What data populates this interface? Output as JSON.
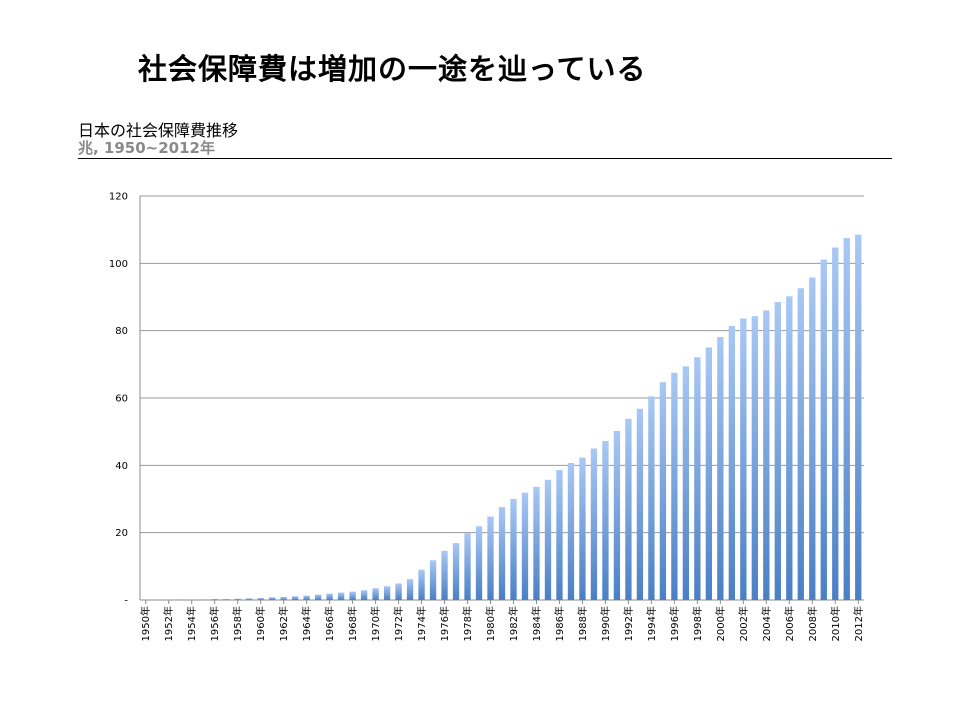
{
  "slide": {
    "title": "社会保障費は増加の一途を辿っている",
    "chart_heading": "日本の社会保障費推移",
    "chart_subheading": "兆, 1950~2012年"
  },
  "chart_data": {
    "type": "bar",
    "title": "日本の社会保障費推移",
    "subtitle": "兆, 1950~2012年",
    "xlabel": "",
    "ylabel": "",
    "ylim": [
      0,
      120
    ],
    "yticks": [
      0,
      20,
      40,
      60,
      80,
      100,
      120
    ],
    "ytick_labels": [
      "-",
      "20",
      "40",
      "60",
      "80",
      "100",
      "120"
    ],
    "grid": true,
    "legend": "none",
    "bar_color_top": "#a9c8f5",
    "bar_color_bottom": "#4a7fc4",
    "categories": [
      "1950年",
      "1951年",
      "1952年",
      "1953年",
      "1954年",
      "1955年",
      "1956年",
      "1957年",
      "1958年",
      "1959年",
      "1960年",
      "1961年",
      "1962年",
      "1963年",
      "1964年",
      "1965年",
      "1966年",
      "1967年",
      "1968年",
      "1969年",
      "1970年",
      "1971年",
      "1972年",
      "1973年",
      "1974年",
      "1975年",
      "1976年",
      "1977年",
      "1978年",
      "1979年",
      "1980年",
      "1981年",
      "1982年",
      "1983年",
      "1984年",
      "1985年",
      "1986年",
      "1987年",
      "1988年",
      "1989年",
      "1990年",
      "1991年",
      "1992年",
      "1993年",
      "1994年",
      "1995年",
      "1996年",
      "1997年",
      "1998年",
      "1999年",
      "2000年",
      "2001年",
      "2002年",
      "2003年",
      "2004年",
      "2005年",
      "2006年",
      "2007年",
      "2008年",
      "2009年",
      "2010年",
      "2011年",
      "2012年"
    ],
    "xtick_labels": [
      "1950年",
      "1952年",
      "1954年",
      "1956年",
      "1958年",
      "1960年",
      "1962年",
      "1964年",
      "1966年",
      "1968年",
      "1970年",
      "1972年",
      "1974年",
      "1976年",
      "1978年",
      "1980年",
      "1982年",
      "1984年",
      "1986年",
      "1988年",
      "1990年",
      "1992年",
      "1994年",
      "1996年",
      "1998年",
      "2000年",
      "2002年",
      "2004年",
      "2006年",
      "2008年",
      "2010年",
      "2012年"
    ],
    "values": [
      0.1,
      0.1,
      0.1,
      0.2,
      0.2,
      0.2,
      0.3,
      0.3,
      0.4,
      0.5,
      0.6,
      0.8,
      0.9,
      1.1,
      1.3,
      1.6,
      1.9,
      2.2,
      2.5,
      2.9,
      3.5,
      4.1,
      4.9,
      6.2,
      9.0,
      11.8,
      14.6,
      16.9,
      19.8,
      21.9,
      24.8,
      27.6,
      30.0,
      31.9,
      33.6,
      35.7,
      38.6,
      40.7,
      42.3,
      45.0,
      47.2,
      50.2,
      53.8,
      56.8,
      60.5,
      64.7,
      67.5,
      69.4,
      72.1,
      75.0,
      78.1,
      81.4,
      83.6,
      84.3,
      86.0,
      88.5,
      90.2,
      92.6,
      95.8,
      101.1,
      104.7,
      107.5,
      108.5
    ]
  }
}
